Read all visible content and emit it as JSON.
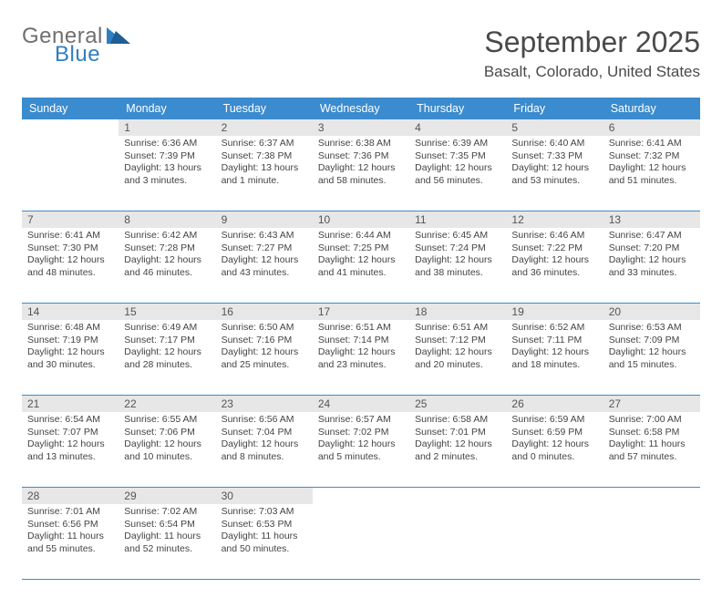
{
  "logo": {
    "general": "General",
    "blue": "Blue"
  },
  "header": {
    "month_title": "September 2025",
    "location": "Basalt, Colorado, United States"
  },
  "colors": {
    "header_bg": "#3b8bcf",
    "header_text": "#ffffff",
    "daynum_bg": "#e7e7e7",
    "text": "#444444",
    "logo_gray": "#6f6f6f",
    "logo_blue": "#2f7fc1"
  },
  "day_names": [
    "Sunday",
    "Monday",
    "Tuesday",
    "Wednesday",
    "Thursday",
    "Friday",
    "Saturday"
  ],
  "weeks": [
    {
      "nums": [
        "",
        "1",
        "2",
        "3",
        "4",
        "5",
        "6"
      ],
      "cells": [
        {
          "sunrise": "",
          "sunset": "",
          "daylight": ""
        },
        {
          "sunrise": "Sunrise: 6:36 AM",
          "sunset": "Sunset: 7:39 PM",
          "daylight": "Daylight: 13 hours and 3 minutes."
        },
        {
          "sunrise": "Sunrise: 6:37 AM",
          "sunset": "Sunset: 7:38 PM",
          "daylight": "Daylight: 13 hours and 1 minute."
        },
        {
          "sunrise": "Sunrise: 6:38 AM",
          "sunset": "Sunset: 7:36 PM",
          "daylight": "Daylight: 12 hours and 58 minutes."
        },
        {
          "sunrise": "Sunrise: 6:39 AM",
          "sunset": "Sunset: 7:35 PM",
          "daylight": "Daylight: 12 hours and 56 minutes."
        },
        {
          "sunrise": "Sunrise: 6:40 AM",
          "sunset": "Sunset: 7:33 PM",
          "daylight": "Daylight: 12 hours and 53 minutes."
        },
        {
          "sunrise": "Sunrise: 6:41 AM",
          "sunset": "Sunset: 7:32 PM",
          "daylight": "Daylight: 12 hours and 51 minutes."
        }
      ]
    },
    {
      "nums": [
        "7",
        "8",
        "9",
        "10",
        "11",
        "12",
        "13"
      ],
      "cells": [
        {
          "sunrise": "Sunrise: 6:41 AM",
          "sunset": "Sunset: 7:30 PM",
          "daylight": "Daylight: 12 hours and 48 minutes."
        },
        {
          "sunrise": "Sunrise: 6:42 AM",
          "sunset": "Sunset: 7:28 PM",
          "daylight": "Daylight: 12 hours and 46 minutes."
        },
        {
          "sunrise": "Sunrise: 6:43 AM",
          "sunset": "Sunset: 7:27 PM",
          "daylight": "Daylight: 12 hours and 43 minutes."
        },
        {
          "sunrise": "Sunrise: 6:44 AM",
          "sunset": "Sunset: 7:25 PM",
          "daylight": "Daylight: 12 hours and 41 minutes."
        },
        {
          "sunrise": "Sunrise: 6:45 AM",
          "sunset": "Sunset: 7:24 PM",
          "daylight": "Daylight: 12 hours and 38 minutes."
        },
        {
          "sunrise": "Sunrise: 6:46 AM",
          "sunset": "Sunset: 7:22 PM",
          "daylight": "Daylight: 12 hours and 36 minutes."
        },
        {
          "sunrise": "Sunrise: 6:47 AM",
          "sunset": "Sunset: 7:20 PM",
          "daylight": "Daylight: 12 hours and 33 minutes."
        }
      ]
    },
    {
      "nums": [
        "14",
        "15",
        "16",
        "17",
        "18",
        "19",
        "20"
      ],
      "cells": [
        {
          "sunrise": "Sunrise: 6:48 AM",
          "sunset": "Sunset: 7:19 PM",
          "daylight": "Daylight: 12 hours and 30 minutes."
        },
        {
          "sunrise": "Sunrise: 6:49 AM",
          "sunset": "Sunset: 7:17 PM",
          "daylight": "Daylight: 12 hours and 28 minutes."
        },
        {
          "sunrise": "Sunrise: 6:50 AM",
          "sunset": "Sunset: 7:16 PM",
          "daylight": "Daylight: 12 hours and 25 minutes."
        },
        {
          "sunrise": "Sunrise: 6:51 AM",
          "sunset": "Sunset: 7:14 PM",
          "daylight": "Daylight: 12 hours and 23 minutes."
        },
        {
          "sunrise": "Sunrise: 6:51 AM",
          "sunset": "Sunset: 7:12 PM",
          "daylight": "Daylight: 12 hours and 20 minutes."
        },
        {
          "sunrise": "Sunrise: 6:52 AM",
          "sunset": "Sunset: 7:11 PM",
          "daylight": "Daylight: 12 hours and 18 minutes."
        },
        {
          "sunrise": "Sunrise: 6:53 AM",
          "sunset": "Sunset: 7:09 PM",
          "daylight": "Daylight: 12 hours and 15 minutes."
        }
      ]
    },
    {
      "nums": [
        "21",
        "22",
        "23",
        "24",
        "25",
        "26",
        "27"
      ],
      "cells": [
        {
          "sunrise": "Sunrise: 6:54 AM",
          "sunset": "Sunset: 7:07 PM",
          "daylight": "Daylight: 12 hours and 13 minutes."
        },
        {
          "sunrise": "Sunrise: 6:55 AM",
          "sunset": "Sunset: 7:06 PM",
          "daylight": "Daylight: 12 hours and 10 minutes."
        },
        {
          "sunrise": "Sunrise: 6:56 AM",
          "sunset": "Sunset: 7:04 PM",
          "daylight": "Daylight: 12 hours and 8 minutes."
        },
        {
          "sunrise": "Sunrise: 6:57 AM",
          "sunset": "Sunset: 7:02 PM",
          "daylight": "Daylight: 12 hours and 5 minutes."
        },
        {
          "sunrise": "Sunrise: 6:58 AM",
          "sunset": "Sunset: 7:01 PM",
          "daylight": "Daylight: 12 hours and 2 minutes."
        },
        {
          "sunrise": "Sunrise: 6:59 AM",
          "sunset": "Sunset: 6:59 PM",
          "daylight": "Daylight: 12 hours and 0 minutes."
        },
        {
          "sunrise": "Sunrise: 7:00 AM",
          "sunset": "Sunset: 6:58 PM",
          "daylight": "Daylight: 11 hours and 57 minutes."
        }
      ]
    },
    {
      "nums": [
        "28",
        "29",
        "30",
        "",
        "",
        "",
        ""
      ],
      "cells": [
        {
          "sunrise": "Sunrise: 7:01 AM",
          "sunset": "Sunset: 6:56 PM",
          "daylight": "Daylight: 11 hours and 55 minutes."
        },
        {
          "sunrise": "Sunrise: 7:02 AM",
          "sunset": "Sunset: 6:54 PM",
          "daylight": "Daylight: 11 hours and 52 minutes."
        },
        {
          "sunrise": "Sunrise: 7:03 AM",
          "sunset": "Sunset: 6:53 PM",
          "daylight": "Daylight: 11 hours and 50 minutes."
        },
        {
          "sunrise": "",
          "sunset": "",
          "daylight": ""
        },
        {
          "sunrise": "",
          "sunset": "",
          "daylight": ""
        },
        {
          "sunrise": "",
          "sunset": "",
          "daylight": ""
        },
        {
          "sunrise": "",
          "sunset": "",
          "daylight": ""
        }
      ]
    }
  ]
}
